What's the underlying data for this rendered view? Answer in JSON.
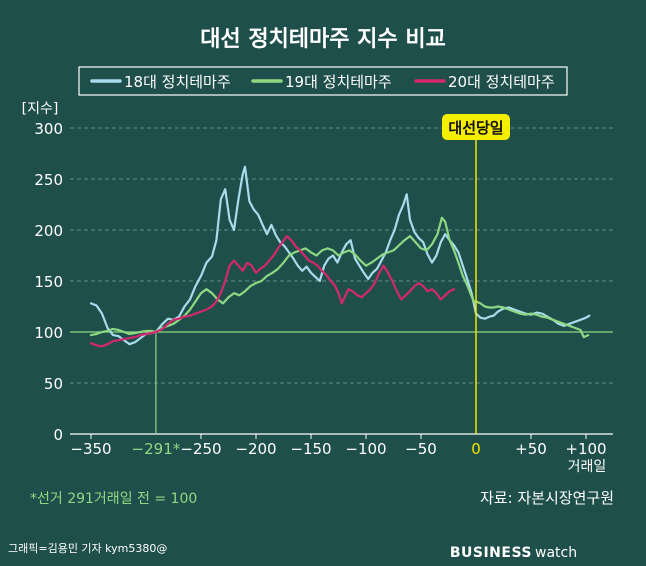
{
  "chart_data": {
    "type": "line",
    "title": "대선 정치테마주 지수 비교",
    "ylabel": "[지수]",
    "xlabel": "거래일",
    "ylim": [
      0,
      300
    ],
    "xlim": [
      -370,
      115
    ],
    "yticks": [
      0,
      50,
      100,
      150,
      200,
      250,
      300
    ],
    "xticks": [
      {
        "value": -350,
        "label": "−350"
      },
      {
        "value": -291,
        "label": "−291*"
      },
      {
        "value": -250,
        "label": "−250"
      },
      {
        "value": -200,
        "label": "−200"
      },
      {
        "value": -150,
        "label": "−150"
      },
      {
        "value": -100,
        "label": "−100"
      },
      {
        "value": -50,
        "label": "−50"
      },
      {
        "value": 0,
        "label": "0"
      },
      {
        "value": 50,
        "label": "+50"
      },
      {
        "value": 100,
        "label": "+100"
      }
    ],
    "grid": true,
    "legend_position": "top",
    "reference_line": {
      "y": 100
    },
    "marker_line": {
      "x": -291
    },
    "election_day": {
      "x": 0,
      "label": "대선당일"
    },
    "series": [
      {
        "name": "18대 정치테마주",
        "color": "#a8dcec",
        "points": [
          [
            -350,
            128
          ],
          [
            -345,
            126
          ],
          [
            -340,
            118
          ],
          [
            -335,
            104
          ],
          [
            -330,
            97
          ],
          [
            -325,
            96
          ],
          [
            -320,
            92
          ],
          [
            -315,
            88
          ],
          [
            -310,
            90
          ],
          [
            -305,
            94
          ],
          [
            -300,
            98
          ],
          [
            -295,
            99
          ],
          [
            -291,
            100
          ],
          [
            -285,
            108
          ],
          [
            -280,
            113
          ],
          [
            -275,
            112
          ],
          [
            -270,
            115
          ],
          [
            -265,
            125
          ],
          [
            -260,
            132
          ],
          [
            -255,
            145
          ],
          [
            -250,
            155
          ],
          [
            -245,
            168
          ],
          [
            -240,
            174
          ],
          [
            -236,
            190
          ],
          [
            -232,
            230
          ],
          [
            -228,
            240
          ],
          [
            -224,
            210
          ],
          [
            -220,
            200
          ],
          [
            -216,
            230
          ],
          [
            -212,
            255
          ],
          [
            -210,
            262
          ],
          [
            -206,
            228
          ],
          [
            -202,
            220
          ],
          [
            -198,
            215
          ],
          [
            -194,
            205
          ],
          [
            -190,
            196
          ],
          [
            -186,
            205
          ],
          [
            -182,
            195
          ],
          [
            -178,
            188
          ],
          [
            -174,
            184
          ],
          [
            -170,
            178
          ],
          [
            -166,
            172
          ],
          [
            -162,
            165
          ],
          [
            -158,
            160
          ],
          [
            -154,
            164
          ],
          [
            -150,
            158
          ],
          [
            -146,
            154
          ],
          [
            -142,
            150
          ],
          [
            -138,
            165
          ],
          [
            -134,
            172
          ],
          [
            -130,
            175
          ],
          [
            -126,
            168
          ],
          [
            -122,
            178
          ],
          [
            -118,
            186
          ],
          [
            -114,
            190
          ],
          [
            -110,
            172
          ],
          [
            -106,
            165
          ],
          [
            -102,
            158
          ],
          [
            -98,
            152
          ],
          [
            -94,
            158
          ],
          [
            -90,
            162
          ],
          [
            -86,
            170
          ],
          [
            -82,
            178
          ],
          [
            -78,
            190
          ],
          [
            -74,
            200
          ],
          [
            -70,
            215
          ],
          [
            -66,
            225
          ],
          [
            -63,
            235
          ],
          [
            -60,
            210
          ],
          [
            -56,
            198
          ],
          [
            -52,
            192
          ],
          [
            -48,
            188
          ],
          [
            -44,
            176
          ],
          [
            -40,
            168
          ],
          [
            -36,
            175
          ],
          [
            -32,
            188
          ],
          [
            -28,
            196
          ],
          [
            -24,
            190
          ],
          [
            -20,
            185
          ],
          [
            -16,
            178
          ],
          [
            -12,
            165
          ],
          [
            -8,
            152
          ],
          [
            -4,
            138
          ],
          [
            -2,
            128
          ],
          [
            0,
            118
          ],
          [
            4,
            114
          ],
          [
            8,
            113
          ],
          [
            12,
            115
          ],
          [
            16,
            116
          ],
          [
            20,
            120
          ],
          [
            25,
            123
          ],
          [
            30,
            124
          ],
          [
            35,
            122
          ],
          [
            40,
            120
          ],
          [
            45,
            118
          ],
          [
            50,
            117
          ],
          [
            55,
            119
          ],
          [
            60,
            118
          ],
          [
            65,
            115
          ],
          [
            70,
            112
          ],
          [
            75,
            108
          ],
          [
            80,
            106
          ],
          [
            85,
            108
          ],
          [
            90,
            110
          ],
          [
            95,
            112
          ],
          [
            100,
            114
          ],
          [
            103,
            116
          ]
        ]
      },
      {
        "name": "19대 정치테마주",
        "color": "#8ed884",
        "points": [
          [
            -350,
            97
          ],
          [
            -345,
            98
          ],
          [
            -340,
            100
          ],
          [
            -335,
            101
          ],
          [
            -330,
            103
          ],
          [
            -325,
            102
          ],
          [
            -320,
            100
          ],
          [
            -315,
            98
          ],
          [
            -310,
            99
          ],
          [
            -305,
            100
          ],
          [
            -300,
            101
          ],
          [
            -295,
            101
          ],
          [
            -291,
            100
          ],
          [
            -285,
            104
          ],
          [
            -280,
            106
          ],
          [
            -275,
            108
          ],
          [
            -270,
            112
          ],
          [
            -265,
            116
          ],
          [
            -260,
            122
          ],
          [
            -255,
            130
          ],
          [
            -250,
            138
          ],
          [
            -245,
            142
          ],
          [
            -240,
            138
          ],
          [
            -235,
            132
          ],
          [
            -230,
            128
          ],
          [
            -225,
            134
          ],
          [
            -220,
            138
          ],
          [
            -215,
            136
          ],
          [
            -210,
            140
          ],
          [
            -205,
            145
          ],
          [
            -200,
            148
          ],
          [
            -195,
            150
          ],
          [
            -190,
            155
          ],
          [
            -185,
            158
          ],
          [
            -180,
            162
          ],
          [
            -175,
            168
          ],
          [
            -170,
            175
          ],
          [
            -165,
            178
          ],
          [
            -160,
            180
          ],
          [
            -155,
            182
          ],
          [
            -150,
            178
          ],
          [
            -145,
            175
          ],
          [
            -140,
            180
          ],
          [
            -135,
            182
          ],
          [
            -130,
            180
          ],
          [
            -125,
            175
          ],
          [
            -120,
            178
          ],
          [
            -115,
            180
          ],
          [
            -110,
            176
          ],
          [
            -105,
            170
          ],
          [
            -100,
            165
          ],
          [
            -95,
            168
          ],
          [
            -90,
            172
          ],
          [
            -85,
            176
          ],
          [
            -80,
            178
          ],
          [
            -75,
            180
          ],
          [
            -70,
            185
          ],
          [
            -65,
            190
          ],
          [
            -60,
            194
          ],
          [
            -55,
            188
          ],
          [
            -50,
            182
          ],
          [
            -45,
            180
          ],
          [
            -40,
            186
          ],
          [
            -35,
            196
          ],
          [
            -31,
            212
          ],
          [
            -28,
            208
          ],
          [
            -24,
            190
          ],
          [
            -20,
            180
          ],
          [
            -16,
            168
          ],
          [
            -12,
            155
          ],
          [
            -8,
            146
          ],
          [
            -4,
            135
          ],
          [
            -2,
            130
          ],
          [
            0,
            130
          ],
          [
            4,
            128
          ],
          [
            8,
            125
          ],
          [
            12,
            124
          ],
          [
            16,
            124
          ],
          [
            20,
            125
          ],
          [
            25,
            124
          ],
          [
            30,
            122
          ],
          [
            35,
            120
          ],
          [
            40,
            118
          ],
          [
            45,
            117
          ],
          [
            50,
            118
          ],
          [
            55,
            117
          ],
          [
            60,
            115
          ],
          [
            65,
            114
          ],
          [
            70,
            112
          ],
          [
            75,
            110
          ],
          [
            80,
            108
          ],
          [
            85,
            106
          ],
          [
            90,
            104
          ],
          [
            95,
            102
          ],
          [
            98,
            95
          ],
          [
            102,
            97
          ]
        ]
      },
      {
        "name": "20대 정치테마주",
        "color": "#d4286e",
        "points": [
          [
            -350,
            89
          ],
          [
            -345,
            87
          ],
          [
            -340,
            86
          ],
          [
            -335,
            88
          ],
          [
            -330,
            91
          ],
          [
            -325,
            92
          ],
          [
            -320,
            93
          ],
          [
            -315,
            94
          ],
          [
            -310,
            95
          ],
          [
            -305,
            97
          ],
          [
            -300,
            98
          ],
          [
            -295,
            99
          ],
          [
            -291,
            100
          ],
          [
            -285,
            103
          ],
          [
            -280,
            108
          ],
          [
            -275,
            112
          ],
          [
            -270,
            113
          ],
          [
            -265,
            115
          ],
          [
            -260,
            116
          ],
          [
            -255,
            118
          ],
          [
            -250,
            120
          ],
          [
            -245,
            122
          ],
          [
            -240,
            125
          ],
          [
            -236,
            130
          ],
          [
            -232,
            138
          ],
          [
            -228,
            150
          ],
          [
            -224,
            165
          ],
          [
            -220,
            170
          ],
          [
            -216,
            165
          ],
          [
            -212,
            160
          ],
          [
            -208,
            168
          ],
          [
            -204,
            165
          ],
          [
            -200,
            158
          ],
          [
            -196,
            162
          ],
          [
            -192,
            165
          ],
          [
            -188,
            170
          ],
          [
            -184,
            175
          ],
          [
            -180,
            182
          ],
          [
            -176,
            188
          ],
          [
            -172,
            194
          ],
          [
            -168,
            190
          ],
          [
            -164,
            184
          ],
          [
            -160,
            180
          ],
          [
            -156,
            175
          ],
          [
            -152,
            170
          ],
          [
            -148,
            168
          ],
          [
            -144,
            165
          ],
          [
            -140,
            160
          ],
          [
            -136,
            156
          ],
          [
            -132,
            150
          ],
          [
            -128,
            145
          ],
          [
            -125,
            138
          ],
          [
            -122,
            128
          ],
          [
            -119,
            135
          ],
          [
            -116,
            142
          ],
          [
            -112,
            140
          ],
          [
            -108,
            136
          ],
          [
            -104,
            134
          ],
          [
            -100,
            138
          ],
          [
            -96,
            142
          ],
          [
            -92,
            148
          ],
          [
            -88,
            158
          ],
          [
            -84,
            165
          ],
          [
            -80,
            158
          ],
          [
            -76,
            150
          ],
          [
            -72,
            140
          ],
          [
            -68,
            132
          ],
          [
            -64,
            136
          ],
          [
            -60,
            140
          ],
          [
            -56,
            145
          ],
          [
            -52,
            148
          ],
          [
            -48,
            145
          ],
          [
            -44,
            140
          ],
          [
            -40,
            142
          ],
          [
            -36,
            138
          ],
          [
            -32,
            132
          ],
          [
            -28,
            136
          ],
          [
            -24,
            140
          ],
          [
            -20,
            142
          ]
        ]
      }
    ]
  },
  "footnote": "*선거 291거래일 전 = 100",
  "source": "자료: 자본시장연구원",
  "credit": "그래픽=김용민 기자 kym5380@",
  "brand": {
    "main": "BUSINESS",
    "sub": "watch"
  },
  "colors": {
    "background": "#1f4f4a",
    "gridline": "#7fa39d",
    "marker_line": "#8ed884",
    "election_line": "#f2e600",
    "label_bg": "#f5ee00"
  }
}
